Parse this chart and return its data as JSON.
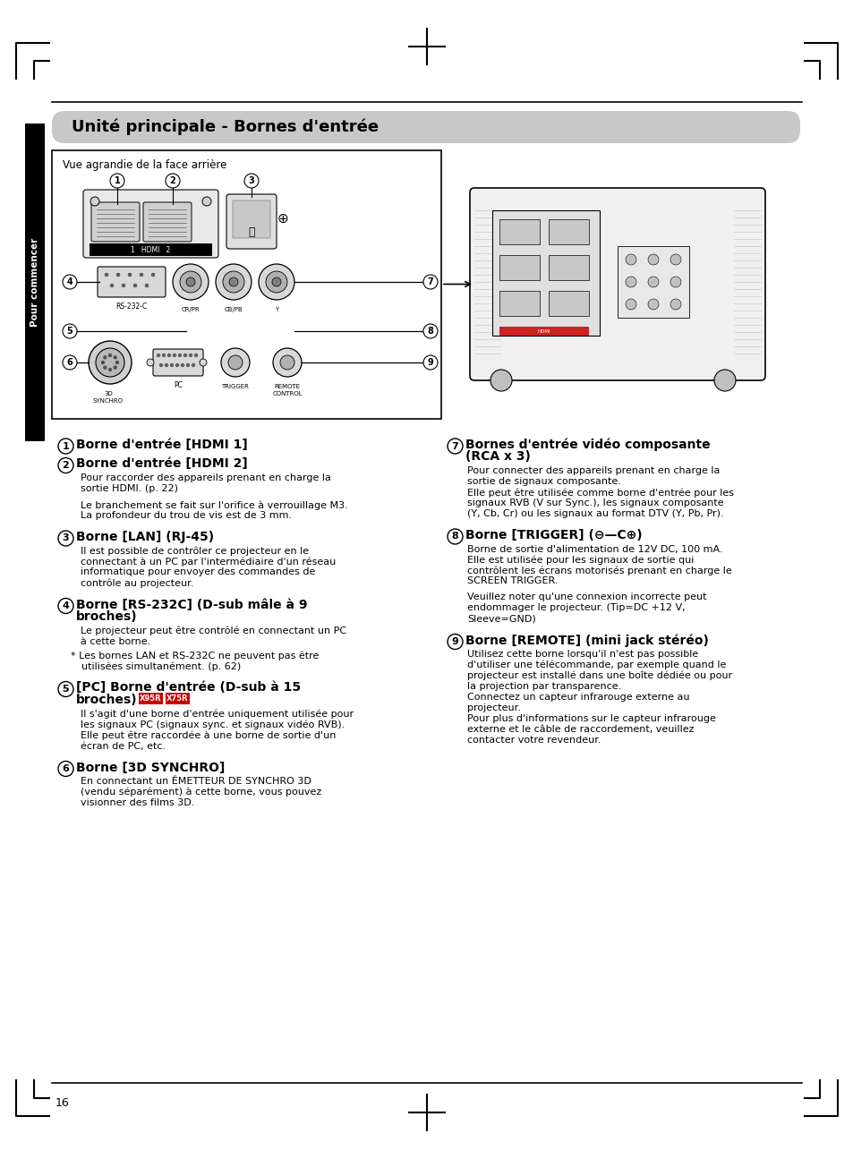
{
  "title": "Unité principale - Bornes d'entrée",
  "page_number": "16",
  "sidebar_text": "Pour commencer",
  "background_color": "#ffffff",
  "title_bg_color": "#c8c8c8",
  "sidebar_bg_color": "#000000",
  "diagram_title": "Vue agrandie de la face arrière",
  "fig_w": 9.54,
  "fig_h": 12.95,
  "dpi": 100
}
